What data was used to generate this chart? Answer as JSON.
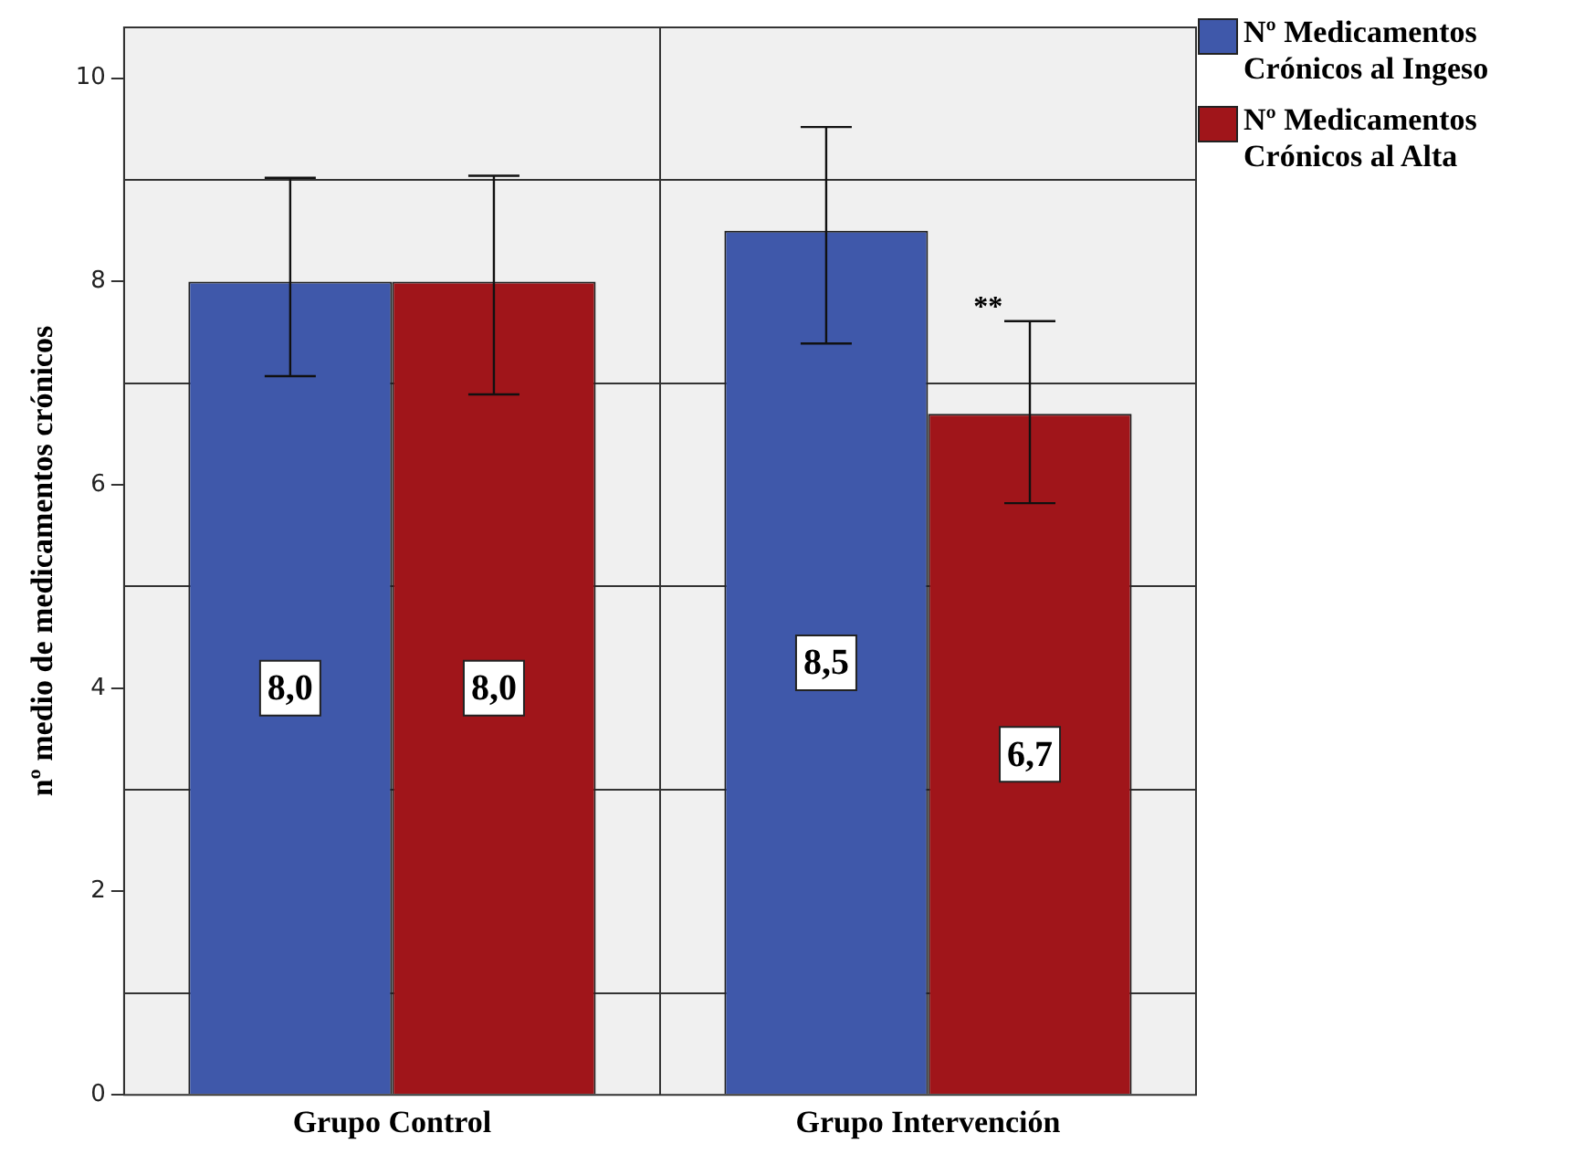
{
  "chart_data": {
    "type": "bar",
    "ylabel": "nº medio de medicamentos crónicos",
    "categories": [
      "Grupo Control",
      "Grupo Intervención"
    ],
    "series": [
      {
        "name": "Nº Medicamentos Crónicos al Ingeso",
        "color": "#3f58aa",
        "values": [
          8.0,
          8.5
        ],
        "value_labels": [
          "8,0",
          "8,5"
        ],
        "errors": [
          [
            7.07,
            9.02
          ],
          [
            7.39,
            9.52
          ]
        ]
      },
      {
        "name": "Nº Medicamentos Crónicos al Alta",
        "color": "#a0151a",
        "values": [
          8.0,
          6.7
        ],
        "value_labels": [
          "8,0",
          "6,7"
        ],
        "errors": [
          [
            6.89,
            9.04
          ],
          [
            5.82,
            7.61
          ]
        ]
      }
    ],
    "ylim": [
      0,
      10.5
    ],
    "yticks": [
      0,
      {
        "value": 1,
        "label": null
      },
      2,
      {
        "value": 3,
        "label": null
      },
      4,
      {
        "value": 5,
        "label": null
      },
      6,
      {
        "value": 7,
        "label": null
      },
      8,
      {
        "value": 9,
        "label": null
      },
      10
    ],
    "grid": true,
    "legend": "top right",
    "annotations": [
      "**"
    ]
  }
}
